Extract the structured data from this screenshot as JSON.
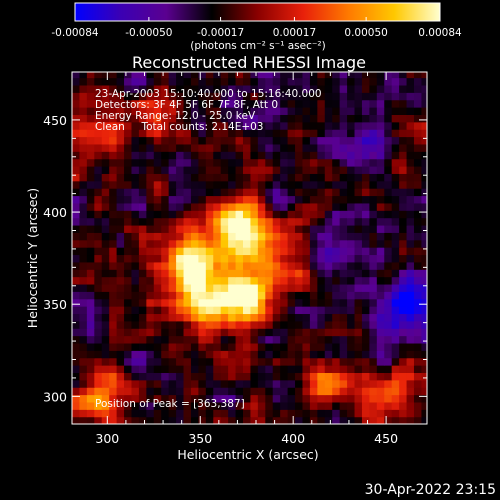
{
  "chart_data": {
    "type": "heatmap",
    "title": "Reconstructed RHESSI Image",
    "info_lines": [
      "23-Apr-2003 15:10:40.000 to 15:16:40.000",
      "Detectors: 3F 4F 5F 6F 7F 8F, Att 0",
      "Energy Range: 12.0 - 25.0 keV",
      "Clean     Total counts: 2.14E+03"
    ],
    "peak_label": "Position of Peak = [363,387]",
    "peak": [
      363,
      387
    ],
    "xlabel": "Heliocentric X (arcsec)",
    "ylabel": "Heliocentric Y (arcsec)",
    "xlim": [
      281,
      472
    ],
    "ylim": [
      285,
      476
    ],
    "x_ticks": [
      300,
      350,
      400,
      450
    ],
    "y_ticks": [
      300,
      350,
      400,
      450
    ],
    "colorbar": {
      "min": -0.00084,
      "max": 0.00084,
      "tick_values": [
        -0.00084,
        -0.0005,
        -0.00017,
        0.00017,
        0.0005,
        0.00084
      ],
      "tick_labels": [
        "-0.00084",
        "-0.00050",
        "-0.00017",
        "0.00017",
        "0.00050",
        "0.00084"
      ],
      "unit_label": "(photons cm⁻² s⁻¹ asec⁻²)"
    },
    "colormap": [
      "#0000ff",
      "#3b00b4",
      "#5a0090",
      "#000000",
      "#8a0000",
      "#e8200a",
      "#ff7a00",
      "#ffc800",
      "#ffffd0"
    ],
    "sources": [
      {
        "x": 370,
        "y": 393,
        "peak": 0.00084,
        "sigma": 11
      },
      {
        "x": 344,
        "y": 370,
        "peak": 0.0007,
        "sigma": 13
      },
      {
        "x": 353,
        "y": 351,
        "peak": 0.00062,
        "sigma": 11
      },
      {
        "x": 377,
        "y": 352,
        "peak": 0.00058,
        "sigma": 10
      },
      {
        "x": 384,
        "y": 375,
        "peak": 0.0004,
        "sigma": 12
      },
      {
        "x": 298,
        "y": 300,
        "peak": 0.00032,
        "sigma": 12
      },
      {
        "x": 450,
        "y": 300,
        "peak": 0.00028,
        "sigma": 13
      },
      {
        "x": 296,
        "y": 448,
        "peak": 0.0003,
        "sigma": 10
      },
      {
        "x": 330,
        "y": 450,
        "peak": 0.00024,
        "sigma": 10
      },
      {
        "x": 420,
        "y": 308,
        "peak": 0.00025,
        "sigma": 9
      }
    ],
    "background": -0.00022,
    "blue_patches": [
      {
        "x": 458,
        "y": 345,
        "value": -0.00078,
        "sigma": 10
      },
      {
        "x": 443,
        "y": 435,
        "value": -0.0006,
        "sigma": 8
      },
      {
        "x": 430,
        "y": 378,
        "value": -0.0005,
        "sigma": 9
      }
    ]
  },
  "footer": {
    "timestamp": "30-Apr-2022 23:15"
  }
}
